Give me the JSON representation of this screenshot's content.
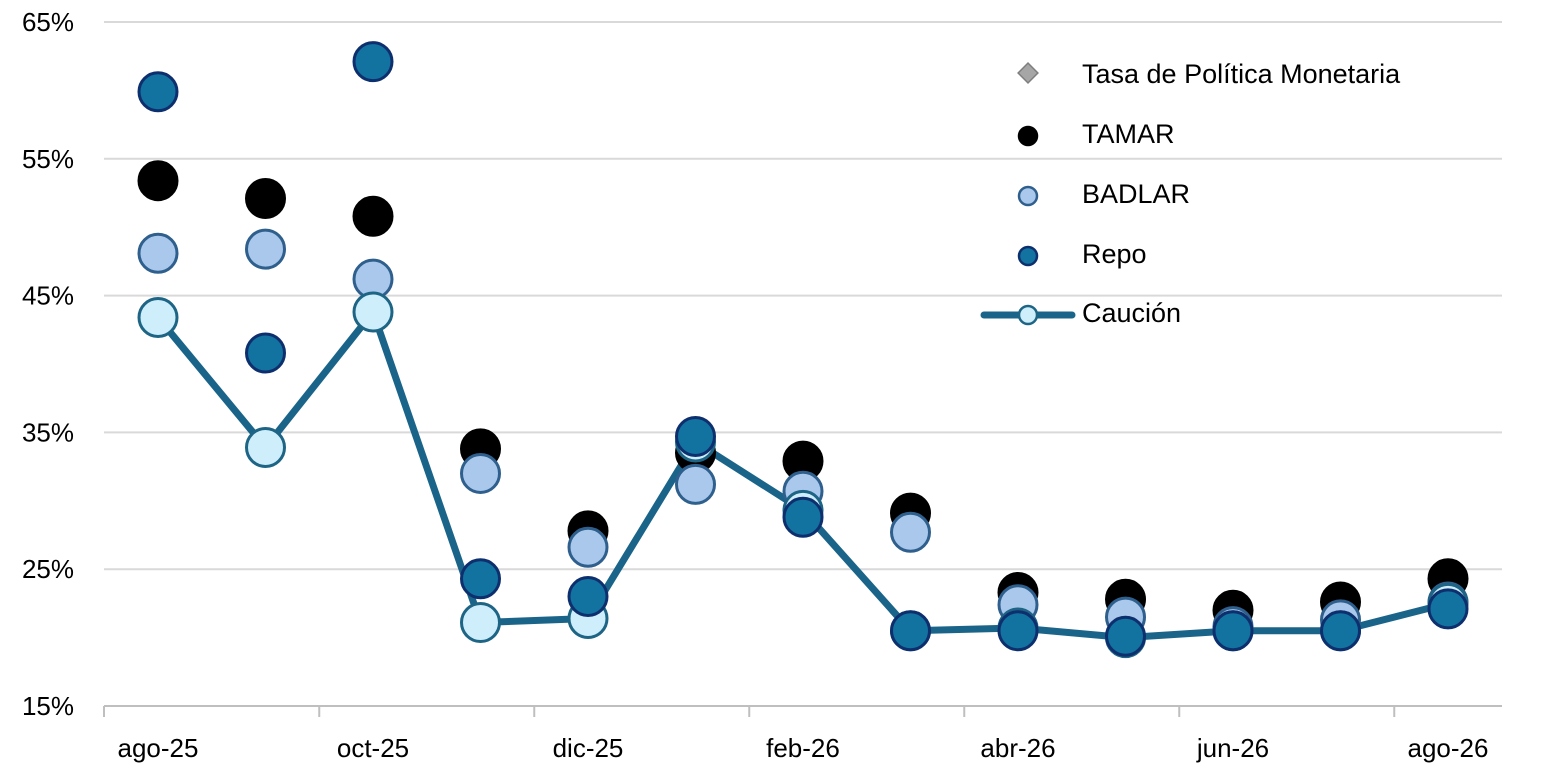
{
  "chart_data": {
    "type": "line",
    "title": "",
    "xlabel": "",
    "ylabel": "",
    "x": [
      "ago-25",
      "sep-25",
      "oct-25",
      "nov-25",
      "dic-25",
      "ene-26",
      "feb-26",
      "mar-26",
      "abr-26",
      "may-26",
      "jun-26",
      "jul-26",
      "ago-26"
    ],
    "x_tick_labels": [
      "ago-25",
      "oct-25",
      "dic-25",
      "feb-26",
      "abr-26",
      "jun-26",
      "ago-26"
    ],
    "y_ticks": [
      15,
      25,
      35,
      45,
      55,
      65
    ],
    "y_tick_labels": [
      "15%",
      "25%",
      "35%",
      "45%",
      "55%",
      "65%"
    ],
    "ylim": [
      15,
      65
    ],
    "y_unit": "%",
    "grid": "horizontal",
    "legend_position": "top-right",
    "series": [
      {
        "name": "Tasa de Política Monetaria",
        "style": "diamond",
        "color": "#a6a6a6",
        "values": [
          null,
          null,
          null,
          null,
          null,
          null,
          null,
          null,
          null,
          null,
          null,
          null,
          null
        ]
      },
      {
        "name": "TAMAR",
        "style": "marker",
        "color": "#000000",
        "stroke": "#000000",
        "values": [
          53.4,
          52.1,
          50.8,
          33.8,
          27.8,
          33.5,
          32.9,
          29.1,
          23.3,
          22.8,
          22.0,
          22.6,
          24.3
        ]
      },
      {
        "name": "BADLAR",
        "style": "marker",
        "color": "#a9c8ec",
        "stroke": "#2f5f8c",
        "values": [
          48.1,
          48.4,
          46.2,
          32.0,
          26.6,
          31.2,
          30.7,
          27.7,
          22.4,
          21.5,
          20.8,
          21.3,
          22.6
        ]
      },
      {
        "name": "Repo",
        "style": "marker",
        "color": "#1272a0",
        "stroke": "#0e2f6e",
        "values": [
          59.9,
          40.8,
          62.1,
          24.3,
          23.0,
          34.7,
          28.8,
          20.5,
          20.5,
          20.1,
          20.5,
          20.5,
          22.1
        ]
      },
      {
        "name": "Caución",
        "style": "line",
        "color": "#cdeefa",
        "stroke": "#1d6485",
        "line_color": "#1a6489",
        "values": [
          43.4,
          33.9,
          43.8,
          21.1,
          21.4,
          34.3,
          29.3,
          20.5,
          20.7,
          20.0,
          20.5,
          20.5,
          22.5
        ]
      }
    ]
  }
}
